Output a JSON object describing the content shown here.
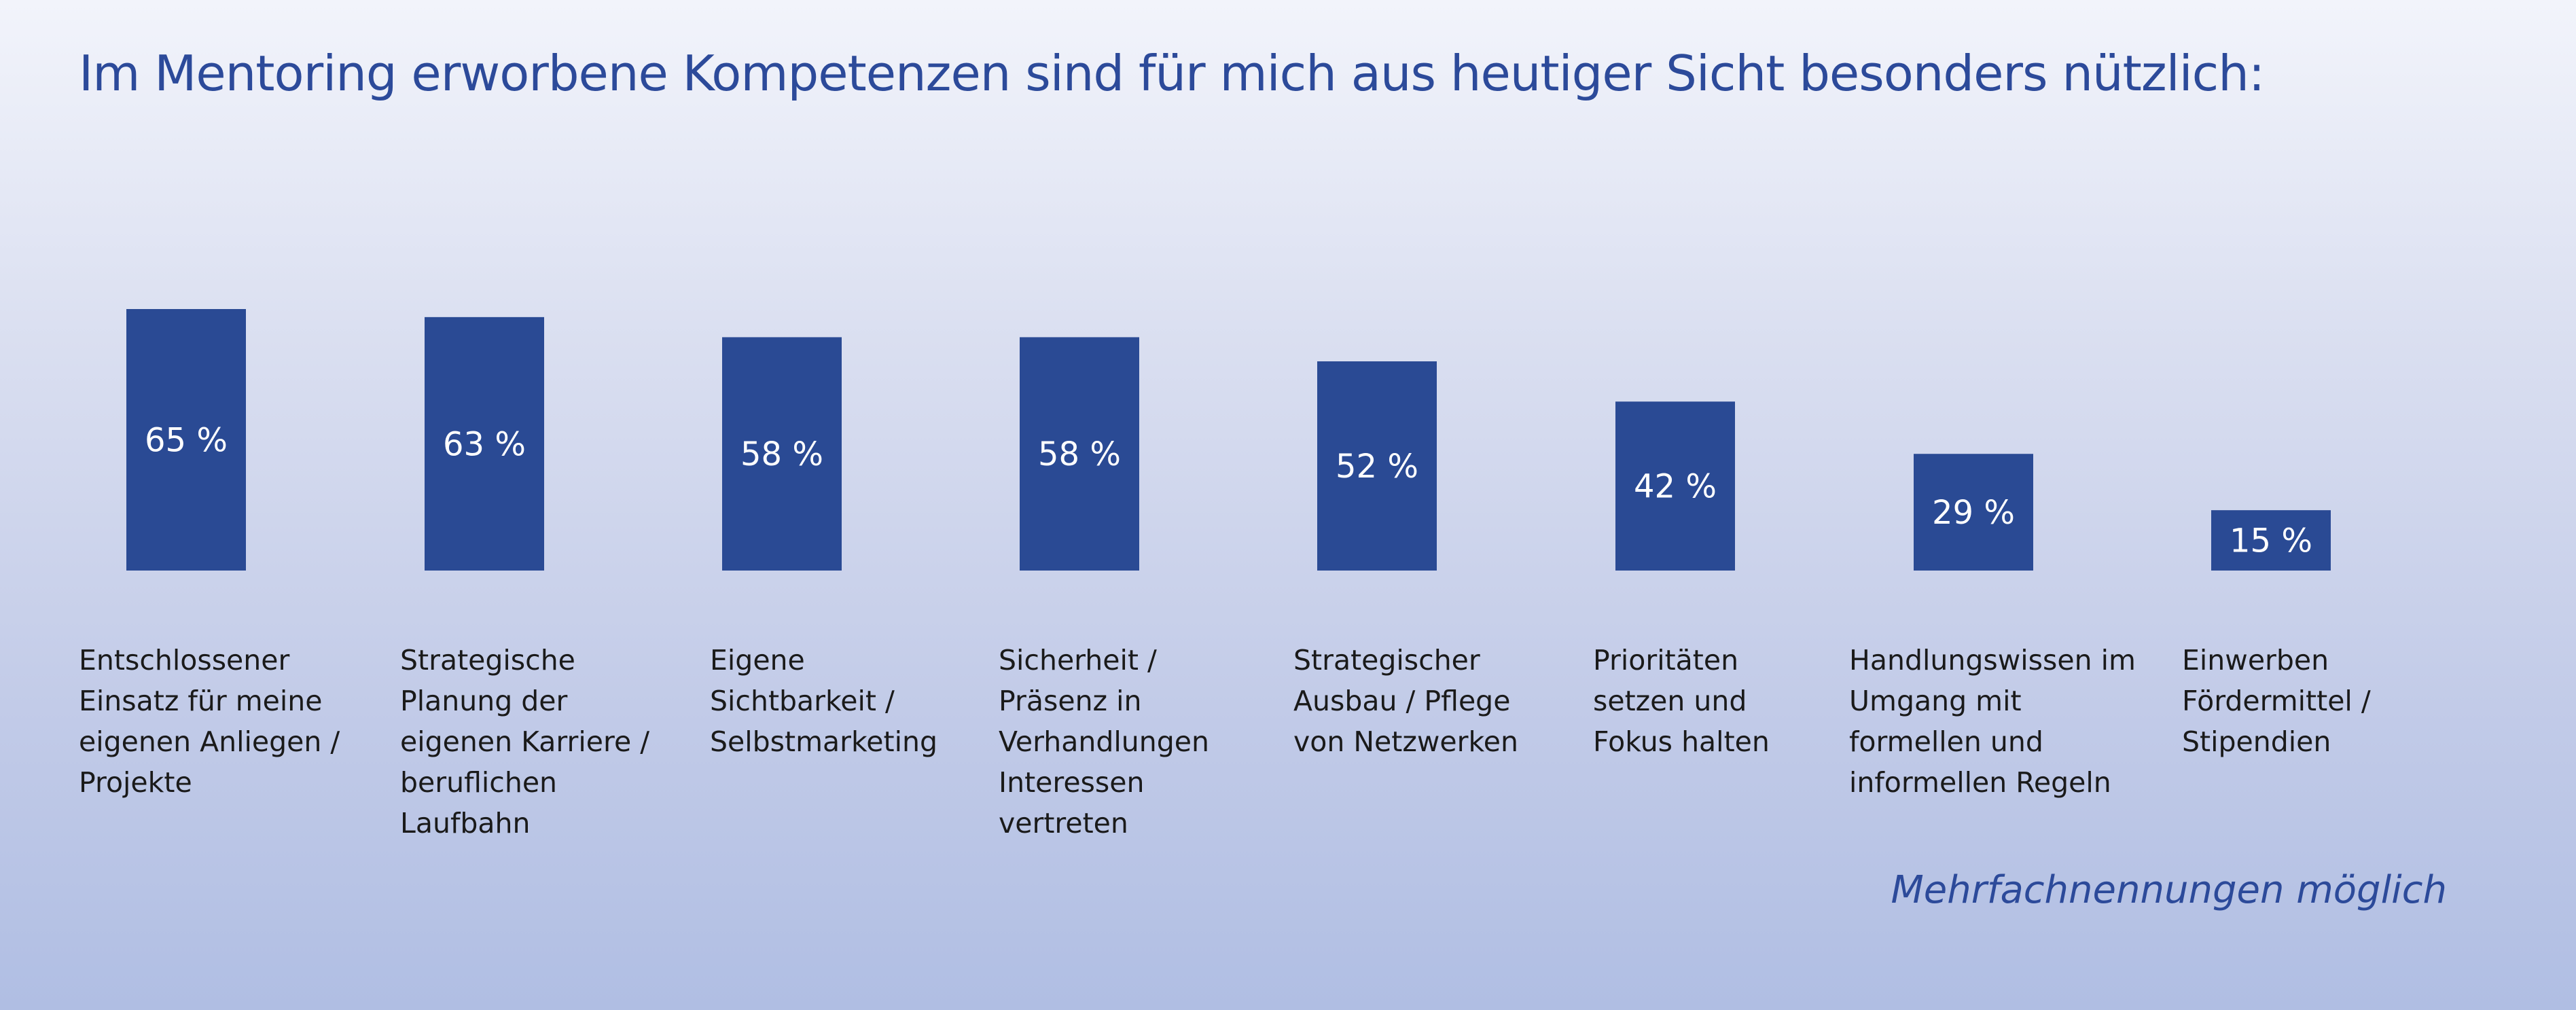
{
  "chart_data": {
    "type": "bar",
    "title": "Im Mentoring erworbene Kompetenzen sind für mich aus heutiger Sicht besonders nützlich:",
    "categories": [
      [
        "Entschlossener",
        "Einsatz für meine",
        "eigenen Anliegen /",
        "Projekte"
      ],
      [
        "Strategische",
        "Planung der",
        "eigenen Karriere /",
        "beruflichen",
        "Laufbahn"
      ],
      [
        "Eigene",
        "Sichtbarkeit /",
        "Selbstmarketing"
      ],
      [
        "Sicherheit /",
        "Präsenz in",
        "Verhandlungen",
        "Interessen",
        "vertreten"
      ],
      [
        "Strategischer",
        "Ausbau / Pflege",
        "von Netzwerken"
      ],
      [
        "Prioritäten",
        "setzen und",
        "Fokus halten"
      ],
      [
        "Handlungswissen im",
        "Umgang mit",
        "formellen und",
        "informellen Regeln"
      ],
      [
        "Einwerben",
        "Fördermittel /",
        "Stipendien"
      ]
    ],
    "values": [
      65,
      63,
      58,
      58,
      52,
      42,
      29,
      15
    ],
    "value_labels": [
      "65 %",
      "63 %",
      "58 %",
      "58 %",
      "52 %",
      "42 %",
      "29 %",
      "15 %"
    ],
    "ylim": [
      0,
      100
    ],
    "bar_color": "#2a4a94",
    "grid": false,
    "legend": "none"
  },
  "note": "Mehrfachnennungen möglich"
}
